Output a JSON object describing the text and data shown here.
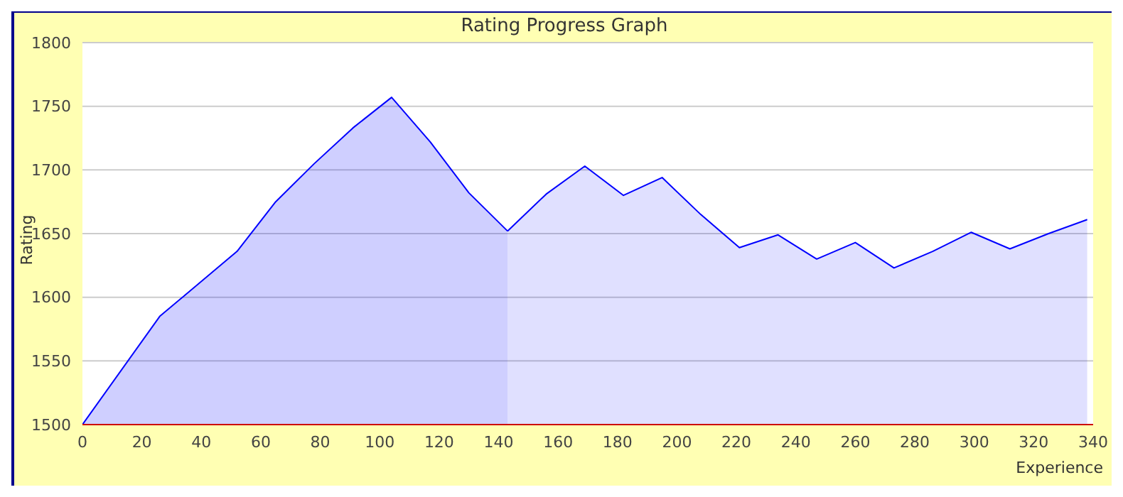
{
  "chart_data": {
    "type": "area",
    "title": "Rating Progress Graph",
    "xlabel": "Experience",
    "ylabel": "Rating",
    "series": [
      {
        "color": "#0000ff",
        "x": [
          0,
          26,
          52,
          65,
          78,
          91,
          104,
          117,
          130,
          143
        ],
        "values": [
          1500,
          1585,
          1636,
          1675,
          1705,
          1733,
          1757,
          1722,
          1682,
          1652
        ]
      },
      {
        "color": "#0000ff",
        "x": [
          143,
          156,
          169,
          182,
          195,
          208,
          221,
          234,
          247,
          260,
          273,
          286,
          299,
          312,
          325,
          338
        ],
        "values": [
          1652,
          1681,
          1703,
          1680,
          1694,
          1665,
          1639,
          1649,
          1630,
          1643,
          1623,
          1636,
          1651,
          1638,
          1650,
          1661
        ]
      }
    ],
    "xlim": [
      0,
      340
    ],
    "xticks": [
      0,
      20,
      40,
      60,
      80,
      100,
      120,
      140,
      160,
      180,
      200,
      220,
      240,
      260,
      280,
      300,
      320,
      340
    ],
    "ylim": [
      1500,
      1800
    ],
    "yticks": [
      1500,
      1550,
      1600,
      1650,
      1700,
      1750,
      1800
    ],
    "grid": "y"
  }
}
